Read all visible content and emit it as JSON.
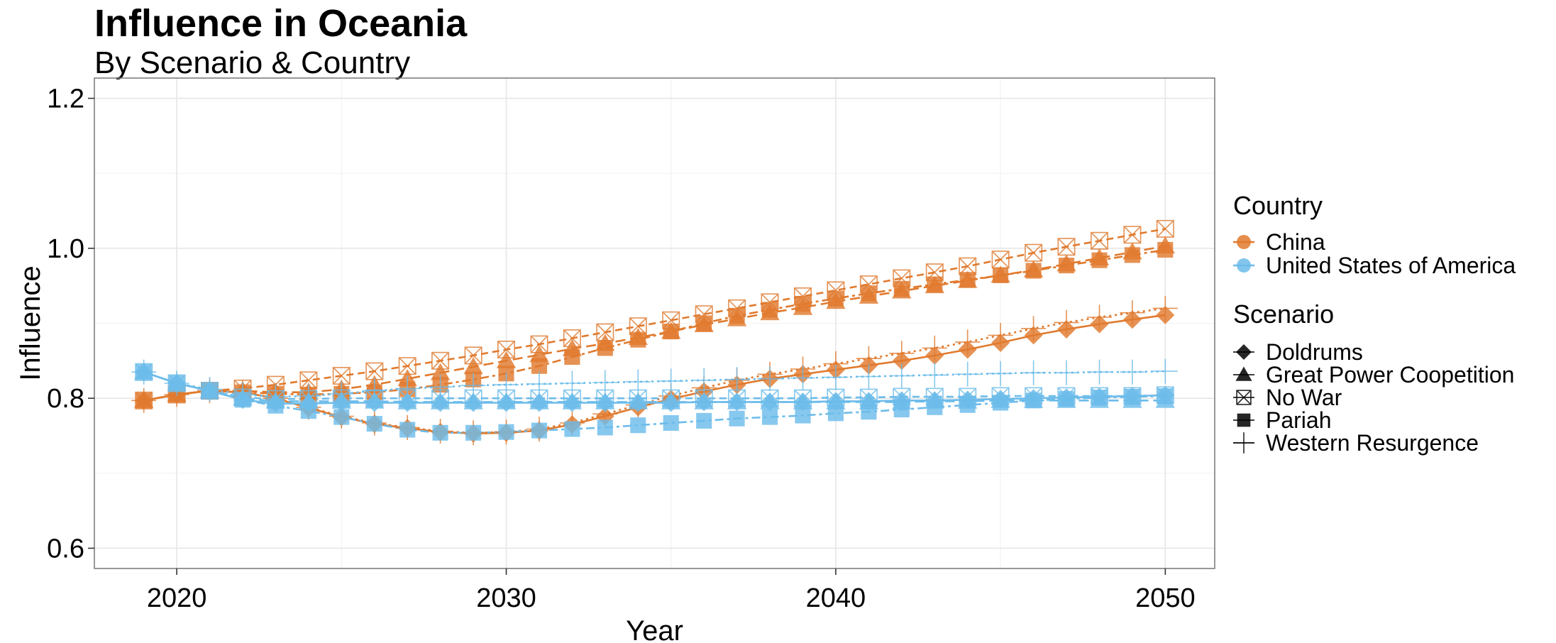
{
  "chart_data": {
    "type": "line",
    "title": "Influence in Oceania",
    "subtitle": "By Scenario & Country",
    "xlabel": "Year",
    "ylabel": "Influence",
    "xlim": [
      2017.5,
      2051.5
    ],
    "ylim": [
      0.573,
      1.227
    ],
    "x_ticks": [
      2020,
      2030,
      2040,
      2050
    ],
    "y_ticks": [
      0.6,
      0.8,
      1.0,
      1.2
    ],
    "y_tick_labels": [
      "0.6",
      "0.8",
      "1.0",
      "1.2"
    ],
    "grid": true,
    "legend_position": "right",
    "legend": {
      "country_title": "Country",
      "country_entries": [
        {
          "label": "China",
          "color": "#e07a2e"
        },
        {
          "label": "United States of America",
          "color": "#6cbcea"
        }
      ],
      "scenario_title": "Scenario",
      "scenario_entries": [
        {
          "label": "Doldrums",
          "shape": "diamond"
        },
        {
          "label": "Great Power Coopetition",
          "shape": "triangle"
        },
        {
          "label": "No War",
          "shape": "boxed-x"
        },
        {
          "label": "Pariah",
          "shape": "square"
        },
        {
          "label": "Western Resurgence",
          "shape": "plus"
        }
      ]
    },
    "x": [
      2019,
      2020,
      2021,
      2022,
      2023,
      2024,
      2025,
      2026,
      2027,
      2028,
      2029,
      2030,
      2031,
      2032,
      2033,
      2034,
      2035,
      2036,
      2037,
      2038,
      2039,
      2040,
      2041,
      2042,
      2043,
      2044,
      2045,
      2046,
      2047,
      2048,
      2049,
      2050
    ],
    "series": [
      {
        "name": "China",
        "scenario": "Doldrums",
        "color": "#e07a2e",
        "shape": "diamond",
        "dash": "solid",
        "values": [
          0.797,
          0.805,
          0.81,
          0.808,
          0.8,
          0.787,
          0.775,
          0.766,
          0.76,
          0.755,
          0.753,
          0.754,
          0.757,
          0.765,
          0.776,
          0.788,
          0.799,
          0.809,
          0.818,
          0.826,
          0.832,
          0.838,
          0.844,
          0.85,
          0.857,
          0.865,
          0.874,
          0.884,
          0.892,
          0.899,
          0.905,
          0.911
        ]
      },
      {
        "name": "China",
        "scenario": "Great Power Coopetition",
        "color": "#e07a2e",
        "shape": "triangle",
        "dash": "14,7",
        "values": [
          0.797,
          0.805,
          0.81,
          0.81,
          0.808,
          0.808,
          0.812,
          0.818,
          0.826,
          0.834,
          0.842,
          0.85,
          0.858,
          0.866,
          0.873,
          0.881,
          0.889,
          0.898,
          0.906,
          0.914,
          0.921,
          0.929,
          0.936,
          0.943,
          0.95,
          0.957,
          0.964,
          0.971,
          0.979,
          0.987,
          0.995,
          1.003
        ]
      },
      {
        "name": "China",
        "scenario": "No War",
        "color": "#e07a2e",
        "shape": "boxed-x",
        "dash": "10,6",
        "values": [
          0.797,
          0.805,
          0.81,
          0.813,
          0.818,
          0.824,
          0.83,
          0.836,
          0.843,
          0.85,
          0.857,
          0.865,
          0.872,
          0.88,
          0.888,
          0.896,
          0.904,
          0.912,
          0.92,
          0.928,
          0.936,
          0.944,
          0.952,
          0.96,
          0.968,
          0.976,
          0.985,
          0.994,
          1.002,
          1.01,
          1.018,
          1.026
        ]
      },
      {
        "name": "China",
        "scenario": "Pariah",
        "color": "#e07a2e",
        "shape": "square",
        "dash": "4,5,12,5",
        "values": [
          0.797,
          0.805,
          0.81,
          0.808,
          0.806,
          0.805,
          0.806,
          0.808,
          0.812,
          0.818,
          0.825,
          0.833,
          0.843,
          0.855,
          0.867,
          0.878,
          0.889,
          0.9,
          0.91,
          0.918,
          0.926,
          0.933,
          0.94,
          0.946,
          0.952,
          0.958,
          0.964,
          0.97,
          0.977,
          0.984,
          0.991,
          0.998
        ]
      },
      {
        "name": "China",
        "scenario": "Western Resurgence",
        "color": "#e07a2e",
        "shape": "plus",
        "dash": "3,5",
        "values": [
          0.797,
          0.805,
          0.81,
          0.808,
          0.8,
          0.788,
          0.776,
          0.767,
          0.761,
          0.756,
          0.754,
          0.755,
          0.759,
          0.767,
          0.779,
          0.791,
          0.803,
          0.814,
          0.824,
          0.832,
          0.839,
          0.846,
          0.853,
          0.86,
          0.867,
          0.875,
          0.884,
          0.893,
          0.901,
          0.908,
          0.914,
          0.92
        ]
      },
      {
        "name": "United States of America",
        "scenario": "Doldrums",
        "color": "#6cbcea",
        "shape": "diamond",
        "dash": "solid",
        "values": [
          0.835,
          0.82,
          0.81,
          0.798,
          0.793,
          0.793,
          0.794,
          0.794,
          0.794,
          0.794,
          0.794,
          0.794,
          0.794,
          0.794,
          0.794,
          0.794,
          0.794,
          0.795,
          0.795,
          0.795,
          0.795,
          0.796,
          0.796,
          0.797,
          0.797,
          0.798,
          0.799,
          0.8,
          0.801,
          0.802,
          0.803,
          0.804
        ]
      },
      {
        "name": "United States of America",
        "scenario": "Great Power Coopetition",
        "color": "#6cbcea",
        "shape": "triangle",
        "dash": "14,7",
        "values": [
          0.835,
          0.82,
          0.81,
          0.8,
          0.796,
          0.796,
          0.796,
          0.796,
          0.795,
          0.795,
          0.795,
          0.795,
          0.795,
          0.795,
          0.795,
          0.795,
          0.795,
          0.795,
          0.795,
          0.795,
          0.795,
          0.795,
          0.795,
          0.795,
          0.796,
          0.796,
          0.797,
          0.797,
          0.797,
          0.797,
          0.797,
          0.797
        ]
      },
      {
        "name": "United States of America",
        "scenario": "No War",
        "color": "#6cbcea",
        "shape": "boxed-x",
        "dash": "10,6",
        "values": [
          0.835,
          0.82,
          0.81,
          0.801,
          0.799,
          0.799,
          0.8,
          0.8,
          0.8,
          0.8,
          0.8,
          0.8,
          0.8,
          0.8,
          0.8,
          0.8,
          0.8,
          0.8,
          0.8,
          0.8,
          0.8,
          0.801,
          0.801,
          0.802,
          0.802,
          0.802,
          0.803,
          0.803,
          0.803,
          0.803,
          0.803,
          0.804
        ]
      },
      {
        "name": "United States of America",
        "scenario": "Pariah",
        "color": "#6cbcea",
        "shape": "square",
        "dash": "4,5,12,5",
        "values": [
          0.835,
          0.82,
          0.81,
          0.798,
          0.79,
          0.783,
          0.775,
          0.766,
          0.758,
          0.754,
          0.754,
          0.755,
          0.757,
          0.759,
          0.761,
          0.764,
          0.767,
          0.77,
          0.773,
          0.775,
          0.777,
          0.78,
          0.782,
          0.785,
          0.788,
          0.791,
          0.794,
          0.797,
          0.799,
          0.801,
          0.802,
          0.803
        ]
      },
      {
        "name": "United States of America",
        "scenario": "Western Resurgence",
        "color": "#6cbcea",
        "shape": "plus",
        "dash": "3,5",
        "values": [
          0.835,
          0.82,
          0.812,
          0.805,
          0.802,
          0.803,
          0.806,
          0.81,
          0.813,
          0.815,
          0.817,
          0.818,
          0.819,
          0.82,
          0.821,
          0.822,
          0.823,
          0.824,
          0.825,
          0.826,
          0.827,
          0.828,
          0.829,
          0.83,
          0.831,
          0.832,
          0.833,
          0.834,
          0.834,
          0.835,
          0.835,
          0.836
        ]
      }
    ]
  }
}
